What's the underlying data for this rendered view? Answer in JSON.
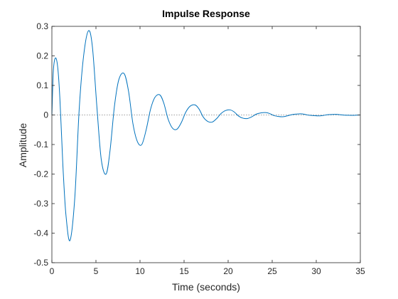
{
  "chart_data": {
    "type": "line",
    "title": "Impulse Response",
    "xlabel": "Time (seconds)",
    "ylabel": "Amplitude",
    "xlim": [
      0,
      35
    ],
    "ylim": [
      -0.5,
      0.3
    ],
    "xticks": [
      0,
      5,
      10,
      15,
      20,
      25,
      30,
      35
    ],
    "xtick_labels": [
      "0",
      "5",
      "10",
      "15",
      "20",
      "25",
      "30",
      "35"
    ],
    "yticks": [
      -0.5,
      -0.4,
      -0.3,
      -0.2,
      -0.1,
      0,
      0.1,
      0.2,
      0.3
    ],
    "ytick_labels": [
      "-0.5",
      "-0.4",
      "-0.3",
      "-0.2",
      "-0.1",
      "0",
      "0.1",
      "0.2",
      "0.3"
    ],
    "grid": false,
    "reference_line": {
      "y": 0,
      "style": "dotted"
    },
    "series": [
      {
        "color": "#0072BD",
        "x": [
          0,
          0.15,
          0.3,
          0.5,
          0.7,
          0.9,
          1.1,
          1.3,
          1.6,
          2.05,
          2.6,
          3.1,
          3.6,
          4.15,
          4.6,
          5.1,
          5.6,
          6.15,
          6.6,
          7.1,
          7.6,
          8.2,
          8.7,
          9.2,
          9.7,
          10.2,
          10.7,
          11.2,
          11.7,
          12.25,
          12.7,
          13.2,
          13.7,
          14.2,
          14.7,
          15.2,
          15.7,
          16.25,
          16.7,
          17.2,
          17.7,
          18.2,
          18.7,
          19.2,
          19.7,
          20.25,
          20.7,
          21.2,
          21.7,
          22.2,
          22.7,
          23.2,
          23.7,
          24.25,
          24.7,
          25.2,
          25.7,
          26.2,
          26.7,
          27.2,
          27.7,
          28.25,
          28.7,
          29.2,
          29.7,
          30.2,
          30.7,
          31.2,
          31.7,
          32.25,
          32.7,
          33.2,
          33.7,
          34.2,
          35
        ],
        "y": [
          0,
          0.14,
          0.185,
          0.19,
          0.15,
          0.06,
          -0.07,
          -0.2,
          -0.34,
          -0.425,
          -0.28,
          0.02,
          0.2,
          0.285,
          0.23,
          0.03,
          -0.15,
          -0.2,
          -0.12,
          0.03,
          0.12,
          0.14,
          0.08,
          -0.03,
          -0.09,
          -0.1,
          -0.05,
          0.02,
          0.06,
          0.068,
          0.04,
          -0.015,
          -0.045,
          -0.048,
          -0.025,
          0.01,
          0.03,
          0.034,
          0.02,
          -0.008,
          -0.022,
          -0.024,
          -0.012,
          0.005,
          0.015,
          0.017,
          0.01,
          -0.004,
          -0.011,
          -0.012,
          -0.006,
          0.003,
          0.007,
          0.008,
          0.005,
          -0.002,
          -0.005,
          -0.006,
          -0.003,
          0.001,
          0.003,
          0.004,
          0.002,
          -0.001,
          -0.002,
          -0.003,
          -0.002,
          0.0005,
          0.0015,
          0.002,
          0.001,
          -0.0005,
          -0.001,
          -0.0012,
          0
        ]
      }
    ]
  }
}
